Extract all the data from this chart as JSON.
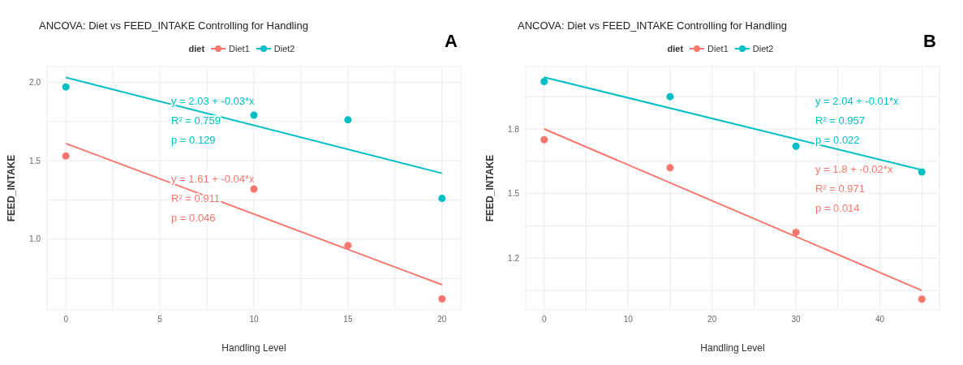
{
  "chart_data": [
    {
      "type": "scatter",
      "title": "ANCOVA: Diet vs FEED_INTAKE Controlling for Handling",
      "xlabel": "Handling Level",
      "ylabel": "FEED_INTAKE",
      "legend_title": "diet",
      "legend": "top",
      "grid": true,
      "marker": "circle",
      "line_style": "solid",
      "xlim": [
        -1,
        21
      ],
      "xticks": [
        0,
        {
          "value": 2.5,
          "label": null
        },
        5,
        {
          "value": 7.5,
          "label": null
        },
        10,
        {
          "value": 12.5,
          "label": null
        },
        15,
        {
          "value": 17.5,
          "label": null
        },
        20
      ],
      "ylim": [
        0.55,
        2.1
      ],
      "yticks": [
        {
          "value": 0.75,
          "label": null
        },
        {
          "value": 1,
          "label": "1.0"
        },
        {
          "value": 1.25,
          "label": null
        },
        1.5,
        {
          "value": 1.75,
          "label": null
        },
        {
          "value": 2,
          "label": "2.0"
        }
      ],
      "series": [
        {
          "name": "Diet1",
          "color": "#f8766d",
          "x": [
            0,
            10,
            15,
            20
          ],
          "values": [
            1.53,
            1.32,
            0.96,
            0.62
          ]
        },
        {
          "name": "Diet2",
          "color": "#00bfc4",
          "x": [
            0,
            10,
            15,
            20
          ],
          "values": [
            1.97,
            1.79,
            1.76,
            1.26
          ]
        },
        {
          "type": "line",
          "marker": "none",
          "color": "#f8766d",
          "x": [
            0,
            20
          ],
          "values": [
            1.61,
            0.71
          ]
        },
        {
          "type": "line",
          "marker": "none",
          "color": "#00bfc4",
          "x": [
            0,
            20
          ],
          "values": [
            2.03,
            1.42
          ]
        }
      ],
      "annotations": [
        "A",
        "y = 1.61 + -0.04*x",
        "R² = 0.911",
        "p = 0.046",
        "y = 2.03 + -0.03*x",
        "R² = 0.759",
        "p = 0.129"
      ]
    },
    {
      "type": "scatter",
      "title": "ANCOVA: Diet vs FEED_INTAKE Controlling for Handling",
      "xlabel": "Handling Level",
      "ylabel": "FEED_INTAKE",
      "legend_title": "diet",
      "legend": "top",
      "grid": true,
      "marker": "circle",
      "line_style": "solid",
      "xlim": [
        -2.2,
        47.1
      ],
      "xticks": [
        0,
        {
          "value": 5,
          "label": null
        },
        10,
        {
          "value": 15,
          "label": null
        },
        20,
        {
          "value": 25,
          "label": null
        },
        30,
        {
          "value": 35,
          "label": null
        },
        40,
        {
          "value": 45,
          "label": null
        }
      ],
      "ylim": [
        0.96,
        2.09
      ],
      "yticks": [
        {
          "value": 1.05,
          "label": null
        },
        1.2,
        {
          "value": 1.35,
          "label": null
        },
        1.5,
        {
          "value": 1.65,
          "label": null
        },
        1.8,
        {
          "value": 1.95,
          "label": null
        }
      ],
      "series": [
        {
          "name": "Diet1",
          "color": "#f8766d",
          "x": [
            0,
            15,
            30,
            45
          ],
          "values": [
            1.75,
            1.62,
            1.32,
            1.01
          ]
        },
        {
          "name": "Diet2",
          "color": "#00bfc4",
          "x": [
            0,
            15,
            30,
            45
          ],
          "values": [
            2.02,
            1.95,
            1.72,
            1.6
          ]
        },
        {
          "type": "line",
          "marker": "none",
          "color": "#f8766d",
          "x": [
            0,
            45
          ],
          "values": [
            1.8,
            1.05
          ]
        },
        {
          "type": "line",
          "marker": "none",
          "color": "#00bfc4",
          "x": [
            0,
            45
          ],
          "values": [
            2.04,
            1.61
          ]
        }
      ],
      "annotations": [
        "B",
        "y = 1.8 + -0.02*x",
        "R² = 0.971",
        "p = 0.014",
        "y = 2.04 + -0.01*x",
        "R² = 0.957",
        "p = 0.022"
      ]
    }
  ]
}
